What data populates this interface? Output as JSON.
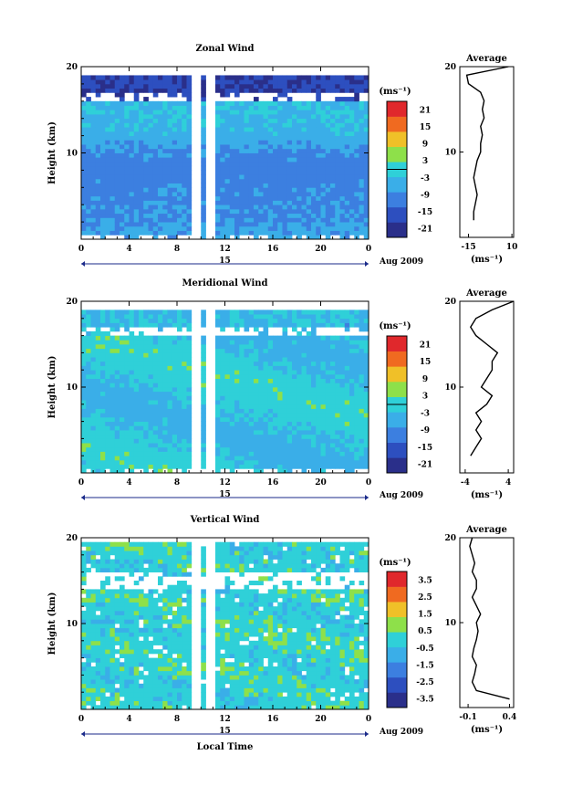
{
  "chart_data": [
    {
      "type": "heatmap",
      "title": "Zonal Wind",
      "ylabel": "Height (km)",
      "yticks": [
        "20",
        "10"
      ],
      "ylim": [
        0,
        20
      ],
      "xticks": [
        "0",
        "4",
        "8",
        "12",
        "16",
        "20",
        "0"
      ],
      "day_label": "15",
      "date_label": "Aug 2009",
      "colorbar": {
        "unit": "(ms⁻¹)",
        "ticks": [
          "21",
          "15",
          "9",
          "3",
          "-3",
          "-9",
          "-15",
          "-21"
        ],
        "range": [
          -24,
          24
        ]
      },
      "profile": {
        "title": "Average",
        "xticks": [
          "-15",
          "10"
        ],
        "xlabel": "(ms⁻¹)",
        "xlim": [
          -20,
          11
        ],
        "heights": [
          2,
          3,
          4,
          5,
          6,
          7,
          8,
          9,
          10,
          11,
          12,
          13,
          14,
          15,
          16,
          17,
          18,
          19,
          20
        ],
        "values": [
          -12,
          -12,
          -11,
          -10,
          -11,
          -12,
          -11,
          -10,
          -8,
          -8,
          -7,
          -8,
          -6,
          -7,
          -6,
          -8,
          -15,
          -16,
          8
        ]
      }
    },
    {
      "type": "heatmap",
      "title": "Meridional Wind",
      "ylabel": "Height (km)",
      "yticks": [
        "20",
        "10"
      ],
      "ylim": [
        0,
        20
      ],
      "xticks": [
        "0",
        "4",
        "8",
        "12",
        "16",
        "20",
        "0"
      ],
      "day_label": "15",
      "date_label": "Aug 2009",
      "colorbar": {
        "unit": "(ms⁻¹)",
        "ticks": [
          "21",
          "15",
          "9",
          "3",
          "-3",
          "-9",
          "-15",
          "-21"
        ],
        "range": [
          -24,
          24
        ]
      },
      "profile": {
        "title": "Average",
        "xticks": [
          "-4",
          "4"
        ],
        "xlabel": "(ms⁻¹)",
        "xlim": [
          -5,
          5
        ],
        "heights": [
          2,
          3,
          4,
          5,
          6,
          7,
          8,
          9,
          10,
          11,
          12,
          13,
          14,
          15,
          16,
          17,
          18,
          19,
          20
        ],
        "values": [
          -3,
          -2,
          -1,
          -2,
          -1,
          -2,
          0,
          1,
          -1,
          0,
          1,
          1,
          2,
          0,
          -2,
          -3,
          -2,
          1,
          5
        ]
      }
    },
    {
      "type": "heatmap",
      "title": "Vertical Wind",
      "ylabel": "Height (km)",
      "yticks": [
        "20",
        "10"
      ],
      "ylim": [
        0,
        20
      ],
      "xticks": [
        "0",
        "4",
        "8",
        "12",
        "16",
        "20",
        "0"
      ],
      "day_label": "15",
      "date_label": "Aug 2009",
      "xlabel": "Local Time",
      "colorbar": {
        "unit": "(ms⁻¹)",
        "ticks": [
          "3.5",
          "2.5",
          "1.5",
          "0.5",
          "-0.5",
          "-1.5",
          "-2.5",
          "-3.5"
        ],
        "range": [
          -4,
          4
        ]
      },
      "profile": {
        "title": "Average",
        "xticks": [
          "-0.1",
          "0.4"
        ],
        "xlabel": "(ms⁻¹)",
        "xlim": [
          -0.2,
          0.45
        ],
        "heights": [
          1,
          2,
          3,
          4,
          5,
          6,
          7,
          8,
          9,
          10,
          11,
          12,
          13,
          14,
          15,
          16,
          17,
          18,
          19,
          20
        ],
        "values": [
          0.4,
          0.0,
          -0.05,
          -0.02,
          0.0,
          -0.05,
          -0.03,
          0.0,
          0.02,
          0.0,
          0.05,
          0.0,
          -0.05,
          0.0,
          0.0,
          -0.05,
          -0.02,
          -0.05,
          -0.08,
          -0.05
        ]
      }
    }
  ]
}
